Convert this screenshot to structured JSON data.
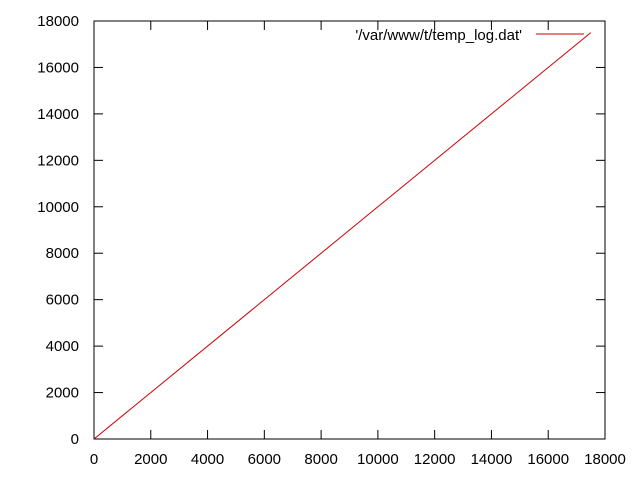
{
  "chart_data": {
    "type": "line",
    "title": "",
    "xlabel": "",
    "ylabel": "",
    "xlim": [
      0,
      18000
    ],
    "ylim": [
      0,
      18000
    ],
    "x_ticks": [
      0,
      2000,
      4000,
      6000,
      8000,
      10000,
      12000,
      14000,
      16000,
      18000
    ],
    "y_ticks": [
      0,
      2000,
      4000,
      6000,
      8000,
      10000,
      12000,
      14000,
      16000,
      18000
    ],
    "x_tick_labels": [
      "0",
      "2000",
      "4000",
      "6000",
      "8000",
      "10000",
      "12000",
      "14000",
      "16000",
      "18000"
    ],
    "y_tick_labels": [
      "0",
      "2000",
      "4000",
      "6000",
      "8000",
      "10000",
      "12000",
      "14000",
      "16000",
      "18000"
    ],
    "grid": false,
    "legend_position": "top-right",
    "series": [
      {
        "name": "'/var/www/t/temp_log.dat'",
        "color": "#cc0000",
        "points": [
          [
            0,
            0
          ],
          [
            17500,
            17500
          ]
        ]
      }
    ]
  }
}
